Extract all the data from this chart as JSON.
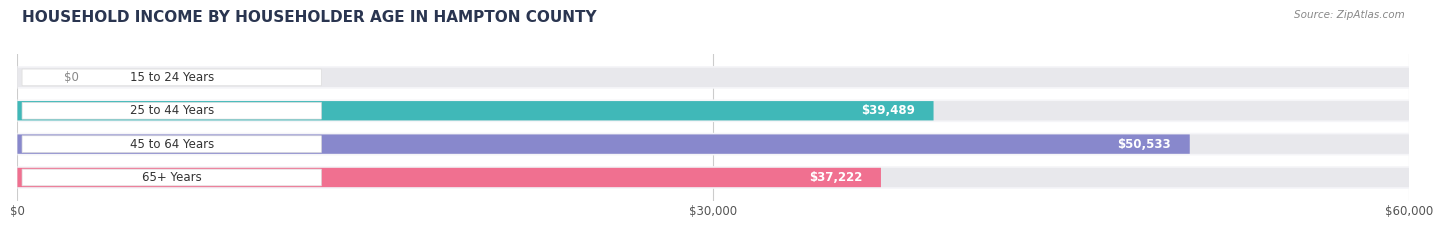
{
  "title": "HOUSEHOLD INCOME BY HOUSEHOLDER AGE IN HAMPTON COUNTY",
  "source_text": "Source: ZipAtlas.com",
  "categories": [
    "15 to 24 Years",
    "25 to 44 Years",
    "45 to 64 Years",
    "65+ Years"
  ],
  "values": [
    0,
    39489,
    50533,
    37222
  ],
  "bar_colors": [
    "#c9a8d4",
    "#40b8b8",
    "#8888cc",
    "#f07090"
  ],
  "bar_bg_color": "#e8e8ec",
  "value_labels": [
    "$0",
    "$39,489",
    "$50,533",
    "$37,222"
  ],
  "xlim": [
    0,
    60000
  ],
  "xticks": [
    0,
    30000,
    60000
  ],
  "xtick_labels": [
    "$0",
    "$30,000",
    "$60,000"
  ],
  "title_fontsize": 11,
  "bar_height": 0.58,
  "figsize": [
    14.06,
    2.33
  ],
  "dpi": 100,
  "label_pill_color": "#ffffff",
  "label_text_color": "#333333",
  "value_text_color": "#ffffff",
  "grid_color": "#cccccc",
  "bg_color": "#f5f5f8"
}
